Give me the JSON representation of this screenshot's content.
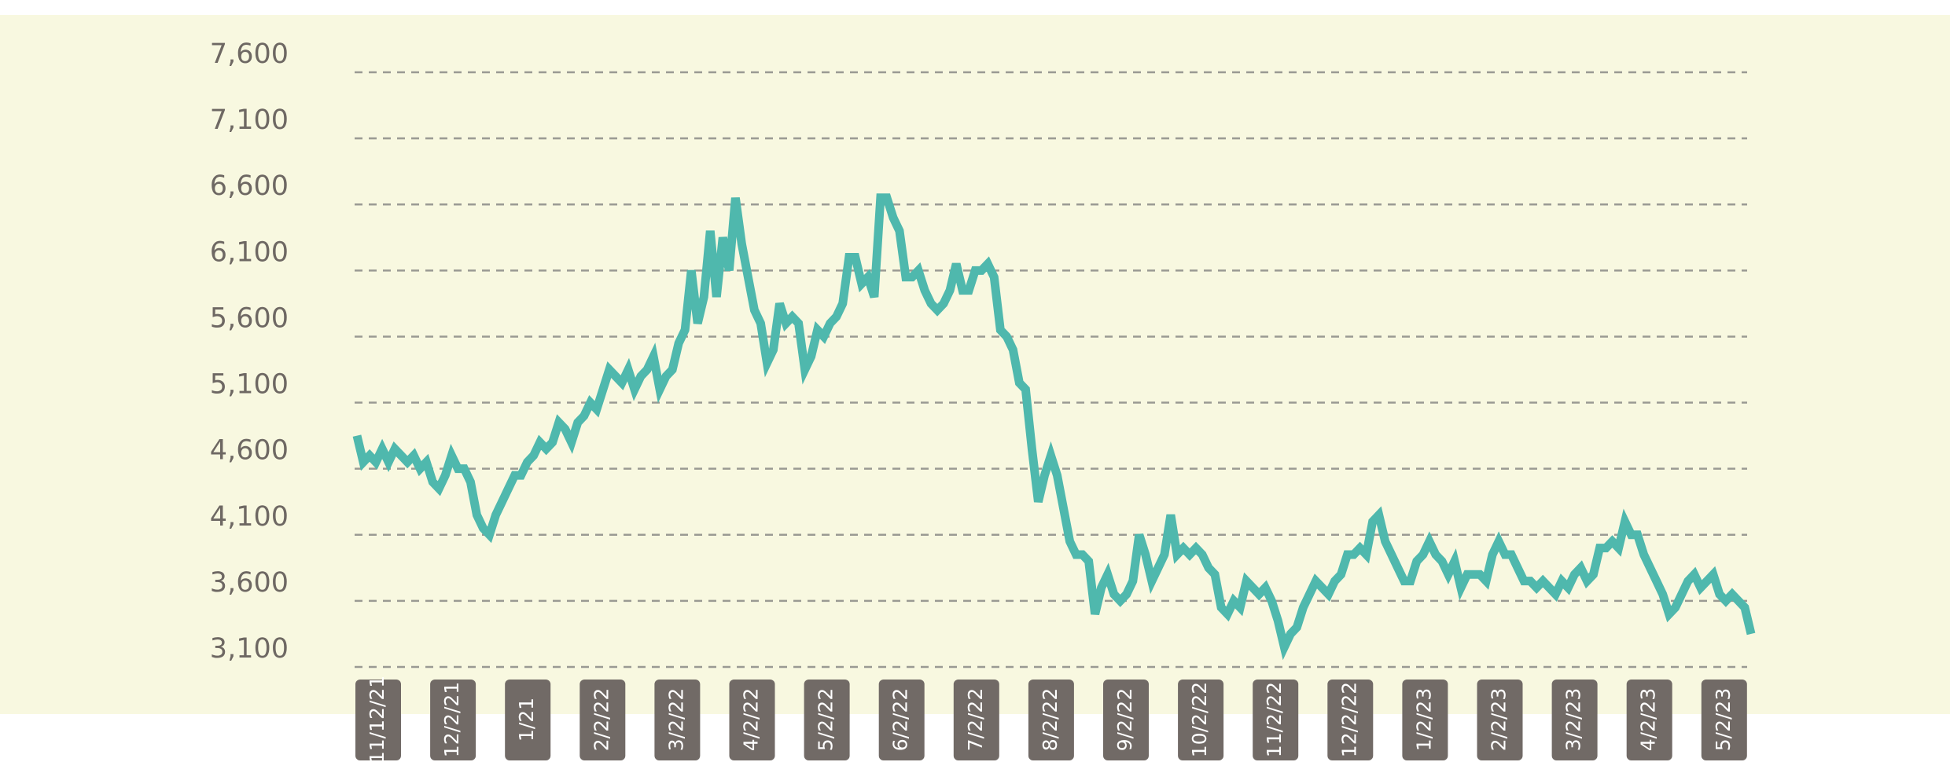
{
  "chart_data": {
    "type": "line",
    "yticks": [
      {
        "value": 3100,
        "label": "3,100"
      },
      {
        "value": 3600,
        "label": "3,600"
      },
      {
        "value": 4100,
        "label": "4,100"
      },
      {
        "value": 4600,
        "label": "4,600"
      },
      {
        "value": 5100,
        "label": "5,100"
      },
      {
        "value": 5600,
        "label": "5,600"
      },
      {
        "value": 6100,
        "label": "6,100"
      },
      {
        "value": 6600,
        "label": "6,600"
      },
      {
        "value": 7100,
        "label": "7,100"
      },
      {
        "value": 7600,
        "label": "7,600"
      }
    ],
    "ylim": [
      3100,
      7600
    ],
    "grid": true,
    "xtick_labels": [
      "11/12/21",
      "12/2/21",
      "1/21",
      "2/2/22",
      "3/2/22",
      "4/2/22",
      "5/2/22",
      "6/2/22",
      "7/2/22",
      "8/2/22",
      "9/2/22",
      "10/2/22",
      "11/2/22",
      "12/2/22",
      "1/2/23",
      "2/2/23",
      "3/2/23",
      "4/2/23",
      "5/2/23"
    ],
    "series": [
      {
        "color": "#4fb8ad",
        "values": [
          4850,
          4650,
          4700,
          4650,
          4750,
          4650,
          4750,
          4700,
          4650,
          4700,
          4600,
          4650,
          4500,
          4450,
          4550,
          4700,
          4600,
          4600,
          4500,
          4250,
          4150,
          4100,
          4250,
          4350,
          4450,
          4550,
          4550,
          4650,
          4700,
          4800,
          4750,
          4800,
          4950,
          4900,
          4800,
          4950,
          5000,
          5100,
          5050,
          5200,
          5350,
          5300,
          5250,
          5350,
          5200,
          5300,
          5350,
          5450,
          5200,
          5300,
          5350,
          5550,
          5650,
          6100,
          5700,
          5900,
          6400,
          5900,
          6350,
          6100,
          6650,
          6300,
          6050,
          5800,
          5700,
          5400,
          5500,
          5850,
          5700,
          5750,
          5700,
          5350,
          5450,
          5650,
          5600,
          5700,
          5750,
          5850,
          6200,
          6200,
          6000,
          6050,
          5900,
          6650,
          6650,
          6500,
          6400,
          6050,
          6050,
          6100,
          5950,
          5850,
          5800,
          5850,
          5950,
          6150,
          5950,
          5950,
          6100,
          6100,
          6150,
          6050,
          5650,
          5600,
          5500,
          5250,
          5200,
          4750,
          4350,
          4550,
          4700,
          4550,
          4300,
          4050,
          3950,
          3950,
          3900,
          3500,
          3700,
          3800,
          3650,
          3600,
          3650,
          3750,
          4100,
          3950,
          3750,
          3850,
          3950,
          4250,
          3950,
          4000,
          3950,
          4000,
          3950,
          3850,
          3800,
          3550,
          3500,
          3600,
          3550,
          3750,
          3700,
          3650,
          3700,
          3600,
          3450,
          3250,
          3350,
          3400,
          3550,
          3650,
          3750,
          3700,
          3650,
          3750,
          3800,
          3950,
          3950,
          4000,
          3950,
          4200,
          4250,
          4050,
          3950,
          3850,
          3750,
          3750,
          3900,
          3950,
          4050,
          3950,
          3900,
          3800,
          3900,
          3700,
          3800,
          3800,
          3800,
          3750,
          3950,
          4050,
          3950,
          3950,
          3850,
          3750,
          3750,
          3700,
          3750,
          3700,
          3650,
          3750,
          3700,
          3800,
          3850,
          3750,
          3800,
          4000,
          4000,
          4050,
          4000,
          4200,
          4100,
          4100,
          3950,
          3850,
          3750,
          3650,
          3500,
          3550,
          3650,
          3750,
          3800,
          3700,
          3750,
          3800,
          3650,
          3600,
          3650,
          3600,
          3550,
          3350
        ]
      }
    ]
  }
}
